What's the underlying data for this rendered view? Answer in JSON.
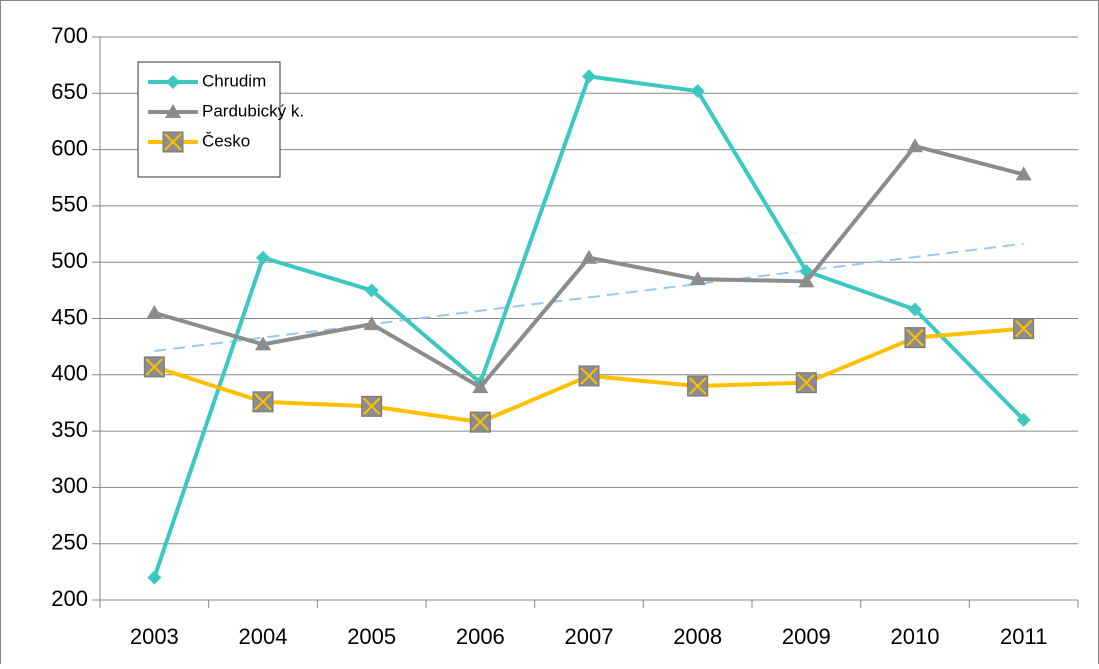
{
  "chart_data": {
    "type": "line",
    "categories": [
      "2003",
      "2004",
      "2005",
      "2006",
      "2007",
      "2008",
      "2009",
      "2010",
      "2011"
    ],
    "series": [
      {
        "name": "Chrudim",
        "color": "#3cc8c0",
        "marker": "diamond",
        "trendline": true,
        "trendline_color": "#99c9f2",
        "values": [
          220,
          504,
          475,
          393,
          665,
          652,
          492,
          458,
          360
        ]
      },
      {
        "name": "Pardubický k.",
        "color": "#8c8c8c",
        "marker": "triangle",
        "values": [
          455,
          427,
          445,
          389,
          504,
          485,
          483,
          603,
          578
        ]
      },
      {
        "name": "Česko",
        "color": "#ffc000",
        "marker": "xsquare",
        "values": [
          407,
          376,
          372,
          358,
          399,
          390,
          393,
          433,
          441
        ]
      }
    ],
    "ylim": [
      200,
      700
    ],
    "yticks": [
      200,
      250,
      300,
      350,
      400,
      450,
      500,
      550,
      600,
      650,
      700
    ],
    "grid": true,
    "legend": "top-left"
  }
}
